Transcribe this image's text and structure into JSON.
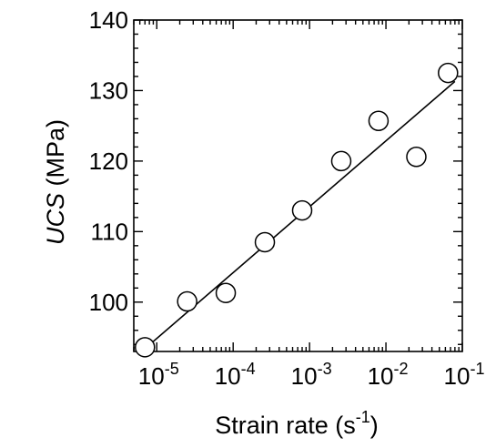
{
  "chart_data": {
    "type": "scatter",
    "xlabel": "Strain rate (s-1)",
    "xlabel_parts": {
      "text": "Strain rate (s",
      "sup": "-1",
      "close": ")"
    },
    "ylabel": "UCS (MPa)",
    "ylabel_parts": {
      "italic": "UCS",
      "rest": " (MPa)"
    },
    "x_scale": "log",
    "xlim": [
      5e-06,
      0.1
    ],
    "ylim": [
      93,
      140
    ],
    "x_ticks": [
      {
        "value": 1e-05,
        "base": "10",
        "exp": "-5"
      },
      {
        "value": 0.0001,
        "base": "10",
        "exp": "-4"
      },
      {
        "value": 0.001,
        "base": "10",
        "exp": "-3"
      },
      {
        "value": 0.01,
        "base": "10",
        "exp": "-2"
      },
      {
        "value": 0.1,
        "base": "10",
        "exp": "-1"
      }
    ],
    "y_ticks": [
      100,
      110,
      120,
      130,
      140
    ],
    "grid": false,
    "series": [
      {
        "marker": "open-circle",
        "x": [
          7e-06,
          2.5e-05,
          8e-05,
          0.00026,
          0.0008,
          0.0026,
          0.008,
          0.025,
          0.065
        ],
        "y": [
          93.6,
          100.1,
          101.3,
          108.5,
          113.0,
          120.0,
          125.7,
          120.6,
          132.5
        ]
      }
    ],
    "fit_line": {
      "x": [
        7e-06,
        0.08
      ],
      "y": [
        93.4,
        131.3
      ]
    }
  }
}
